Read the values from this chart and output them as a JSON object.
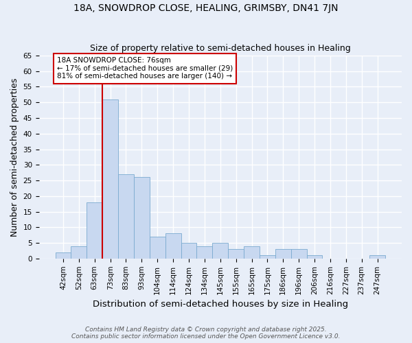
{
  "title": "18A, SNOWDROP CLOSE, HEALING, GRIMSBY, DN41 7JN",
  "subtitle": "Size of property relative to semi-detached houses in Healing",
  "xlabel": "Distribution of semi-detached houses by size in Healing",
  "ylabel": "Number of semi-detached properties",
  "categories": [
    "42sqm",
    "52sqm",
    "63sqm",
    "73sqm",
    "83sqm",
    "93sqm",
    "104sqm",
    "114sqm",
    "124sqm",
    "134sqm",
    "145sqm",
    "155sqm",
    "165sqm",
    "175sqm",
    "186sqm",
    "196sqm",
    "206sqm",
    "216sqm",
    "227sqm",
    "237sqm",
    "247sqm"
  ],
  "values": [
    2,
    4,
    18,
    51,
    27,
    26,
    7,
    8,
    5,
    4,
    5,
    3,
    4,
    1,
    3,
    3,
    1,
    0,
    0,
    0,
    1
  ],
  "bar_color": "#c8d8f0",
  "bar_edge_color": "#7aaad0",
  "property_line_idx": 3,
  "annotation_text": "18A SNOWDROP CLOSE: 76sqm\n← 17% of semi-detached houses are smaller (29)\n81% of semi-detached houses are larger (140) →",
  "ylim": [
    0,
    65
  ],
  "yticks": [
    0,
    5,
    10,
    15,
    20,
    25,
    30,
    35,
    40,
    45,
    50,
    55,
    60,
    65
  ],
  "footer_line1": "Contains HM Land Registry data © Crown copyright and database right 2025.",
  "footer_line2": "Contains public sector information licensed under the Open Government Licence v3.0.",
  "bg_color": "#e8eef8",
  "grid_color": "#ffffff",
  "annotation_box_color": "#ffffff",
  "annotation_box_edge": "#cc0000",
  "red_line_color": "#cc0000",
  "title_fontsize": 10,
  "subtitle_fontsize": 9,
  "axis_label_fontsize": 9,
  "tick_fontsize": 7.5,
  "annotation_fontsize": 7.5,
  "footer_fontsize": 6.5
}
